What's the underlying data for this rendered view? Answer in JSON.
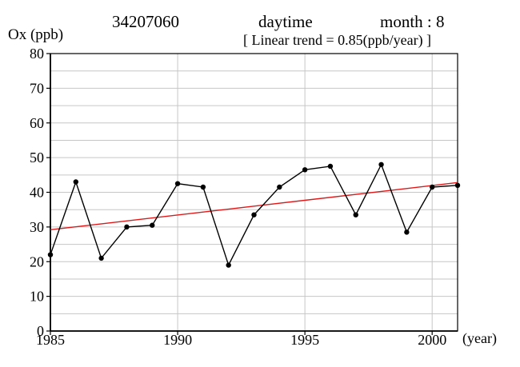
{
  "header": {
    "station_id": "34207060",
    "daytime_label": "daytime",
    "month_label": "month : 8",
    "trend_label": "[ Linear trend = 0.85(ppb/year) ]"
  },
  "axes": {
    "y_axis_title": "Ox (ppb)",
    "x_axis_unit": "(year)",
    "y_tick_labels": [
      "80",
      "70",
      "60",
      "50",
      "40",
      "30",
      "20",
      "10",
      "0"
    ],
    "x_tick_labels": [
      "1985",
      "1990",
      "1995",
      "2000"
    ]
  },
  "chart_data": {
    "type": "line",
    "title": "34207060 daytime month : 8",
    "x": [
      1985,
      1986,
      1987,
      1988,
      1989,
      1990,
      1991,
      1992,
      1993,
      1994,
      1995,
      1996,
      1997,
      1998,
      1999,
      2000,
      2001
    ],
    "series": [
      {
        "name": "Ox",
        "color": "#000000",
        "marker": "circle",
        "values": [
          22,
          43,
          21,
          30,
          30.5,
          42.5,
          41.5,
          19,
          33.5,
          41.5,
          46.5,
          47.5,
          33.5,
          48,
          28.5,
          41.5,
          42
        ]
      },
      {
        "name": "linear_trend",
        "color": "#e01818",
        "slope_ppb_per_year": 0.85,
        "trend_start": {
          "x": 1985,
          "y": 29.2
        },
        "trend_end": {
          "x": 2001,
          "y": 42.8
        }
      }
    ],
    "xlabel": "(year)",
    "ylabel": "Ox (ppb)",
    "xlim": [
      1985,
      2001
    ],
    "ylim": [
      0,
      80
    ],
    "grid": {
      "y_step": 5,
      "x_gridlines": [
        1990,
        1995,
        2000
      ],
      "color": "#c6c6c6"
    },
    "legend": "none"
  },
  "colors": {
    "data_line": "#000000",
    "trend_line": "#e01818",
    "grid": "#c6c6c6",
    "background": "#ffffff"
  }
}
